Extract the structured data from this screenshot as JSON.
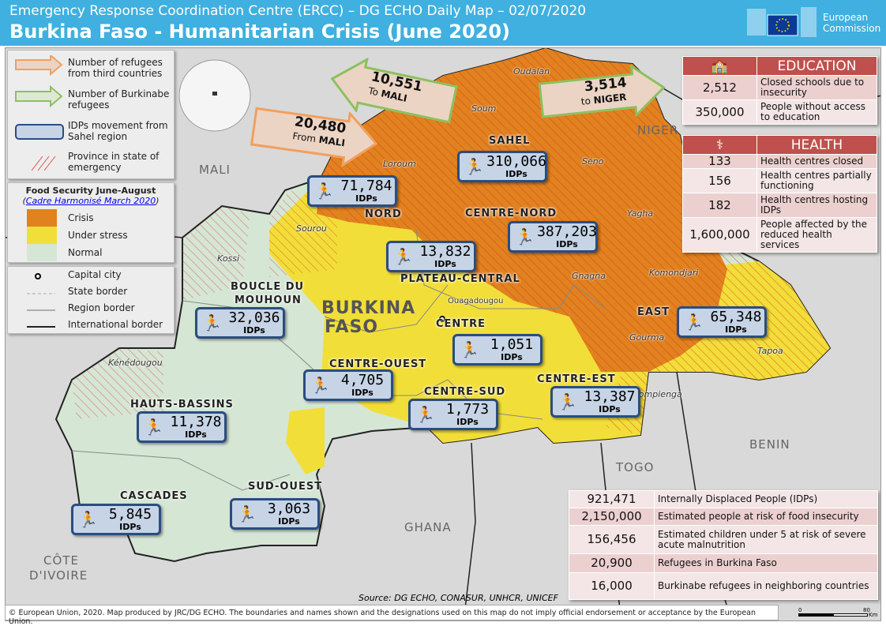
{
  "header": {
    "subtitle": "Emergency Response Coordination Centre (ERCC) – DG ECHO Daily Map – 02/07/2020",
    "title": "Burkina Faso - Humanitarian Crisis (June 2020)",
    "logo_text_1": "European",
    "logo_text_2": "Commission"
  },
  "legend": {
    "symbols": [
      {
        "label": "Number of refugees from third countries",
        "sample": "xxx",
        "color": "#f0a060"
      },
      {
        "label": "Number of Burkinabe refugees",
        "sample": "xxx",
        "color": "#8dc060"
      },
      {
        "label": "IDPs movement from Sahel region",
        "sample": "xxx",
        "color": "#2a4d80"
      },
      {
        "label": "Province in state of emergency"
      }
    ],
    "food_title": "Food Security June-August",
    "food_source": "Cadre Harmonisé March 2020",
    "food_classes": [
      {
        "label": "Crisis",
        "color": "#e0821e"
      },
      {
        "label": "Under stress",
        "color": "#f2de38"
      },
      {
        "label": "Normal",
        "color": "#d5e6d5"
      }
    ],
    "lines": [
      {
        "label": "Capital city"
      },
      {
        "label": "State border"
      },
      {
        "label": "Region border"
      },
      {
        "label": "International border"
      }
    ]
  },
  "arrows": [
    {
      "value": "20,480",
      "prefix": "From",
      "place": "MALI",
      "type": "third-country"
    },
    {
      "value": "10,551",
      "prefix": "To",
      "place": "MALI",
      "type": "burkinabe"
    },
    {
      "value": "3,514",
      "prefix": "to",
      "place": "NIGER",
      "type": "burkinabe"
    }
  ],
  "countries": {
    "center_1": "BURKINA",
    "center_2": "FASO",
    "neighbors": [
      "MALI",
      "NIGER",
      "BENIN",
      "TOGO",
      "GHANA",
      "CÔTE",
      "D'IVOIRE"
    ],
    "capital": "Ouagadougou"
  },
  "regions": [
    "SAHEL",
    "NORD",
    "CENTRE-NORD",
    "PLATEAU-CENTRAL",
    "BOUCLE DU",
    "MOUHOUN",
    "CENTRE",
    "EAST",
    "CENTRE-OUEST",
    "CENTRE-EST",
    "CENTRE-SUD",
    "HAUTS-BASSINS",
    "CASCADES",
    "SUD-OUEST"
  ],
  "provinces": [
    "Oudalan",
    "Soum",
    "Séno",
    "Loroum",
    "Yagha",
    "Sourou",
    "Kossi",
    "Gnagna",
    "Komondjari",
    "Gourma",
    "Tapoa",
    "Kompienga",
    "Kénédougou"
  ],
  "idps": {
    "unit": "IDPs",
    "values": [
      "310,066",
      "71,784",
      "387,203",
      "13,832",
      "32,036",
      "65,348",
      "1,051",
      "4,705",
      "13,387",
      "1,773",
      "11,378",
      "5,845",
      "3,063"
    ]
  },
  "education": {
    "title": "EDUCATION",
    "icon": "school-icon",
    "rows": [
      {
        "value": "2,512",
        "label": "Closed schools due to insecurity"
      },
      {
        "value": "350,000",
        "label": "People without access to education"
      }
    ]
  },
  "health": {
    "title": "HEALTH",
    "icon": "caduceus-icon",
    "rows": [
      {
        "value": "133",
        "label": "Health centres closed"
      },
      {
        "value": "156",
        "label": "Health centres partially functioning"
      },
      {
        "value": "182",
        "label": "Health centres hosting IDPs"
      },
      {
        "value": "1,600,000",
        "label": "People affected by the reduced health services"
      }
    ]
  },
  "summary": [
    {
      "value": "921,471",
      "label": "Internally Displaced People (IDPs)"
    },
    {
      "value": "2,150,000",
      "label": "Estimated people at risk of food insecurity"
    },
    {
      "value": "156,456",
      "label": "Estimated children under 5 at risk of severe acute malnutrition"
    },
    {
      "value": "20,900",
      "label": "Refugees in Burkina Faso"
    },
    {
      "value": "16,000",
      "label": "Burkinabe refugees in neighboring countries"
    }
  ],
  "source": "Source: DG ECHO, CONASUR, UNHCR, UNICEF",
  "footer": "© European Union, 2020. Map produced by JRC/DG ECHO. The boundaries and names shown and the designations used on this map do not imply official endorsement or acceptance by the European Union.",
  "scale": {
    "min": "0",
    "max": "80",
    "unit": "Km"
  }
}
